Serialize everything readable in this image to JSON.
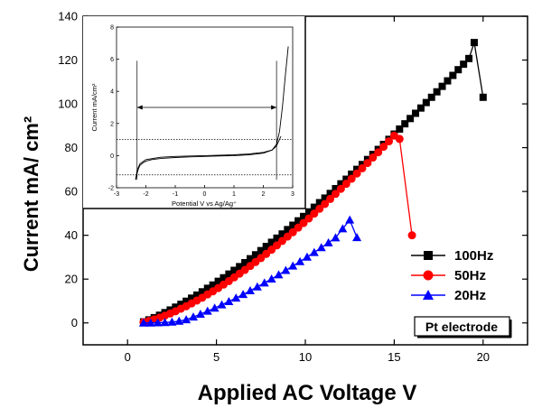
{
  "chart_data": [
    {
      "type": "line",
      "title": "",
      "xlabel": "Applied AC Voltage V",
      "ylabel": "Current mA/ cm²",
      "xlim": [
        -2.5,
        22.5
      ],
      "ylim": [
        -10,
        140
      ],
      "xticks": [
        0,
        5,
        10,
        15,
        20
      ],
      "yticks": [
        0,
        20,
        40,
        60,
        80,
        100,
        120,
        140
      ],
      "legend_position": "right",
      "annotation": "Pt electrode",
      "series": [
        {
          "name": "100Hz",
          "marker": "square",
          "color": "#000000",
          "x": [
            0.9,
            1.2,
            1.5,
            1.8,
            2.1,
            2.4,
            2.7,
            3.0,
            3.3,
            3.6,
            3.9,
            4.2,
            4.5,
            4.8,
            5.1,
            5.4,
            5.7,
            6.0,
            6.3,
            6.6,
            6.9,
            7.2,
            7.5,
            7.8,
            8.1,
            8.4,
            8.7,
            9.0,
            9.3,
            9.6,
            9.9,
            10.2,
            10.5,
            10.8,
            11.1,
            11.4,
            11.7,
            12.0,
            12.3,
            12.6,
            12.9,
            13.2,
            13.5,
            13.8,
            14.1,
            14.4,
            14.7,
            15.0,
            15.3,
            15.6,
            15.9,
            16.2,
            16.5,
            16.8,
            17.1,
            17.4,
            17.7,
            18.0,
            18.3,
            18.6,
            18.9,
            19.2,
            19.5,
            20.0
          ],
          "y": [
            0.5,
            1.4,
            2.4,
            3.5,
            4.7,
            5.9,
            7.2,
            8.5,
            9.9,
            11.3,
            12.7,
            14.2,
            15.8,
            17.3,
            19.0,
            20.6,
            22.3,
            24.0,
            25.7,
            27.5,
            29.3,
            31.1,
            33.0,
            34.9,
            36.8,
            38.7,
            40.6,
            42.6,
            44.6,
            46.6,
            48.6,
            50.7,
            52.8,
            54.9,
            57.0,
            59.1,
            61.3,
            63.5,
            65.6,
            67.9,
            70.1,
            72.3,
            74.6,
            76.9,
            79.2,
            81.5,
            83.8,
            86.2,
            88.5,
            90.9,
            93.3,
            95.7,
            98.1,
            100.6,
            103.0,
            105.5,
            108.0,
            110.5,
            113.0,
            115.6,
            118.1,
            120.7,
            128.0,
            103.0
          ]
        },
        {
          "name": "50Hz",
          "marker": "circle",
          "color": "#ff0000",
          "x": [
            0.9,
            1.2,
            1.5,
            1.8,
            2.1,
            2.4,
            2.7,
            3.0,
            3.3,
            3.6,
            3.9,
            4.2,
            4.5,
            4.8,
            5.1,
            5.4,
            5.7,
            6.0,
            6.3,
            6.6,
            6.9,
            7.2,
            7.5,
            7.8,
            8.1,
            8.4,
            8.7,
            9.0,
            9.3,
            9.6,
            9.9,
            10.2,
            10.5,
            10.8,
            11.1,
            11.4,
            11.7,
            12.0,
            12.3,
            12.6,
            12.9,
            13.2,
            13.5,
            13.8,
            14.1,
            14.4,
            14.7,
            15.0,
            15.3,
            16.0
          ],
          "y": [
            0.3,
            0.9,
            1.6,
            2.4,
            3.3,
            4.3,
            5.3,
            6.5,
            7.6,
            8.9,
            10.2,
            11.5,
            13.0,
            14.4,
            15.9,
            17.5,
            19.1,
            20.8,
            22.5,
            24.2,
            26.0,
            27.8,
            29.6,
            31.5,
            33.4,
            35.4,
            37.4,
            39.4,
            41.4,
            43.5,
            45.6,
            47.7,
            49.9,
            52.1,
            54.3,
            56.6,
            58.9,
            61.2,
            63.5,
            65.8,
            68.2,
            70.6,
            73.0,
            75.5,
            77.9,
            80.4,
            82.9,
            85.5,
            84.0,
            40.0
          ]
        },
        {
          "name": "20Hz",
          "marker": "triangle",
          "color": "#0000ff",
          "x": [
            0.9,
            1.3,
            1.7,
            2.1,
            2.5,
            2.9,
            3.3,
            3.7,
            4.1,
            4.5,
            4.9,
            5.3,
            5.7,
            6.1,
            6.5,
            6.9,
            7.3,
            7.7,
            8.1,
            8.5,
            8.9,
            9.3,
            9.7,
            10.1,
            10.5,
            10.9,
            11.3,
            11.7,
            12.1,
            12.5,
            12.9
          ],
          "y": [
            0.0,
            0.0,
            0.1,
            0.2,
            0.4,
            0.8,
            1.5,
            2.7,
            4.0,
            5.4,
            6.8,
            8.3,
            9.8,
            11.4,
            13.0,
            14.7,
            16.5,
            18.3,
            20.1,
            22.0,
            24.0,
            26.0,
            28.0,
            30.1,
            32.2,
            34.4,
            36.6,
            38.9,
            43.0,
            47.0,
            39.0
          ]
        }
      ]
    },
    {
      "type": "line",
      "title": "",
      "xlabel": "Potential V vs Ag/Ag⁺",
      "ylabel": "Current mA/cm²",
      "xlim": [
        -3,
        3
      ],
      "ylim": [
        -2,
        8
      ],
      "xticks": [
        "-3",
        "-2",
        "-1",
        "0",
        "1",
        "2",
        "3"
      ],
      "yticks": [
        "-2",
        "0",
        "2",
        "4",
        "6",
        "8"
      ],
      "reference_lines": [
        {
          "orientation": "horizontal",
          "y": 1.0,
          "style": "dotted"
        },
        {
          "orientation": "horizontal",
          "y": -1.2,
          "style": "dotted"
        },
        {
          "orientation": "vertical",
          "x": -2.3,
          "style": "solid"
        },
        {
          "orientation": "vertical",
          "x": 2.45,
          "style": "solid"
        }
      ],
      "annotation_arrow": {
        "from_x": -2.3,
        "to_x": 2.45,
        "y": 3.0,
        "style": "double-headed"
      },
      "series": [
        {
          "name": "",
          "x": [
            -2.35,
            -2.3,
            -2.25,
            -2.2,
            -2.1,
            -2.0,
            -1.8,
            -1.5,
            -1.0,
            -0.5,
            0.0,
            0.5,
            1.0,
            1.5,
            2.0,
            2.3,
            2.45,
            2.55,
            2.65,
            2.75,
            2.85
          ],
          "y": [
            -1.5,
            -1.1,
            -0.8,
            -0.6,
            -0.45,
            -0.35,
            -0.25,
            -0.18,
            -0.12,
            -0.08,
            -0.05,
            -0.02,
            0.0,
            0.05,
            0.15,
            0.35,
            0.7,
            1.5,
            3.0,
            5.0,
            6.8
          ]
        },
        {
          "name": "",
          "x": [
            -2.35,
            -2.3,
            -2.2,
            -2.0,
            -1.5,
            -1.0,
            -0.5,
            0.0,
            0.5,
            1.0,
            1.5,
            2.0,
            2.3,
            2.45,
            2.6
          ],
          "y": [
            -1.5,
            -0.9,
            -0.5,
            -0.25,
            -0.1,
            -0.05,
            -0.02,
            0.0,
            0.02,
            0.05,
            0.1,
            0.2,
            0.35,
            0.6,
            1.2
          ]
        }
      ]
    }
  ]
}
